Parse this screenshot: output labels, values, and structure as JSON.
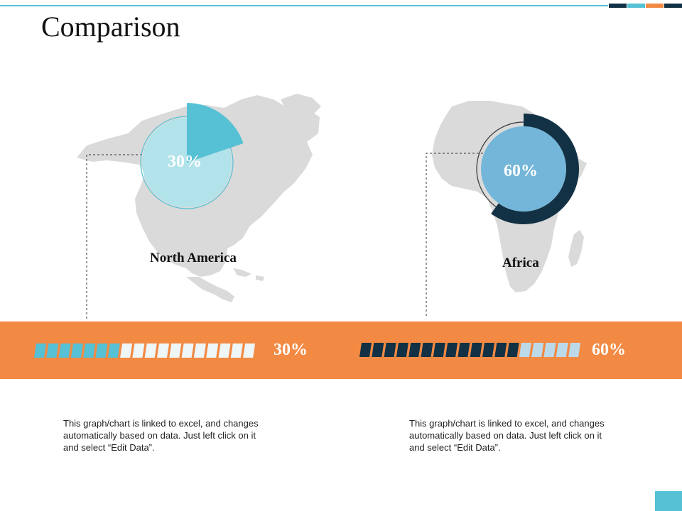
{
  "slide": {
    "title": "Comparison"
  },
  "colors": {
    "accent_teal": "#56c1d4",
    "teal_light": "#b3e3ea",
    "navy": "#123144",
    "sky": "#74b6d9",
    "pale_blue": "#bcd9ea",
    "orange": "#f28a44",
    "map_gray": "#dadada",
    "top_blocks": [
      "#123144",
      "#56c1d4",
      "#f28a44",
      "#123144"
    ]
  },
  "regions": [
    {
      "label": "North America",
      "value": 0.3,
      "value_label": "30%",
      "map_icon": "north-america-map",
      "band_label": "30%",
      "description": "This graph/chart is linked to excel, and changes automatically based on data. Just left click on it and select “Edit Data”."
    },
    {
      "label": "Africa",
      "value": 0.6,
      "value_label": "60%",
      "map_icon": "africa-map",
      "band_label": "60%",
      "description": "This graph/chart is linked to excel, and changes automatically based on data. Just left click on it and select “Edit Data”."
    }
  ]
}
